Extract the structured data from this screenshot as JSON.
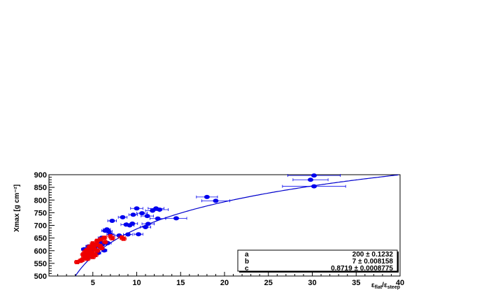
{
  "chart_data": {
    "type": "scatter",
    "title": "",
    "xlabel": "ε_flat/ε_steep",
    "ylabel": "Xmax [g cm⁻²]",
    "xlim": [
      0,
      40
    ],
    "ylim": [
      500,
      900
    ],
    "x_ticks": [
      5,
      10,
      15,
      20,
      25,
      30,
      35,
      40
    ],
    "y_ticks": [
      500,
      550,
      600,
      650,
      700,
      750,
      800,
      850,
      900
    ],
    "grid": false,
    "colors": {
      "series_blue": "#0000ee",
      "series_red": "#ee0000",
      "fit": "#0000cc"
    },
    "fit": {
      "function": "a*log(x) - ... fitted curve",
      "params": [
        {
          "name": "a",
          "value": "200 ± 0.1232"
        },
        {
          "name": "b",
          "value": "7 ± 0.008158"
        },
        {
          "name": "c",
          "value": "0.8719 ± 0.0008775"
        }
      ]
    },
    "series": [
      {
        "marker": "circle",
        "color": "#0000ee",
        "points": [
          [
            30.2,
            897,
            3.0
          ],
          [
            29.8,
            880,
            2.0
          ],
          [
            30.2,
            854,
            3.6
          ],
          [
            18.0,
            812,
            1.2
          ],
          [
            19.0,
            797,
            1.6
          ],
          [
            12.2,
            767,
            0.9
          ],
          [
            10.0,
            767,
            0.7
          ],
          [
            12.6,
            762,
            1.0
          ],
          [
            11.8,
            758,
            0.8
          ],
          [
            10.6,
            748,
            0.6
          ],
          [
            9.6,
            742,
            0.5
          ],
          [
            11.2,
            737,
            0.7
          ],
          [
            14.5,
            728,
            1.2
          ],
          [
            12.4,
            727,
            0.9
          ],
          [
            8.4,
            732,
            0.5
          ],
          [
            7.2,
            718,
            0.5
          ],
          [
            9.5,
            707,
            0.6
          ],
          [
            11.3,
            706,
            0.7
          ],
          [
            8.8,
            703,
            0.6
          ],
          [
            11.0,
            693,
            0.6
          ],
          [
            9.2,
            700,
            0.5
          ],
          [
            6.6,
            684,
            0.4
          ],
          [
            6.4,
            679,
            0.4
          ],
          [
            6.8,
            676,
            0.4
          ],
          [
            10.2,
            665,
            0.5
          ],
          [
            9.0,
            664,
            0.5
          ],
          [
            8.0,
            660,
            0.5
          ],
          [
            7.0,
            664,
            0.4
          ],
          [
            6.0,
            651,
            0.4
          ],
          [
            5.8,
            636,
            0.4
          ],
          [
            6.7,
            630,
            0.4
          ],
          [
            6.1,
            625,
            0.4
          ],
          [
            5.5,
            621,
            0.3
          ],
          [
            4.5,
            617,
            0.3
          ],
          [
            5.9,
            614,
            0.3
          ],
          [
            5.2,
            609,
            0.3
          ],
          [
            4.0,
            606,
            0.3
          ],
          [
            6.3,
            601,
            0.3
          ],
          [
            4.8,
            599,
            0.3
          ],
          [
            4.2,
            595,
            0.3
          ],
          [
            5.6,
            591,
            0.3
          ],
          [
            4.6,
            584,
            0.3
          ],
          [
            4.3,
            579,
            0.3
          ]
        ]
      },
      {
        "marker": "square",
        "color": "#ee0000",
        "points": [
          [
            7.0,
            657,
            0.4
          ],
          [
            8.3,
            652,
            0.4
          ],
          [
            7.2,
            649,
            0.3
          ],
          [
            8.5,
            647,
            0.3
          ],
          [
            6.3,
            651,
            0.3
          ],
          [
            5.9,
            645,
            0.3
          ],
          [
            5.5,
            639,
            0.3
          ],
          [
            6.4,
            634,
            0.3
          ],
          [
            5.0,
            629,
            0.3
          ],
          [
            5.4,
            624,
            0.3
          ],
          [
            5.8,
            619,
            0.3
          ],
          [
            4.6,
            615,
            0.3
          ],
          [
            5.1,
            612,
            0.3
          ],
          [
            4.7,
            608,
            0.3
          ],
          [
            5.2,
            605,
            0.3
          ],
          [
            4.3,
            602,
            0.3
          ],
          [
            4.6,
            598,
            0.3
          ],
          [
            4.1,
            595,
            0.3
          ],
          [
            5.0,
            592,
            0.3
          ],
          [
            4.3,
            589,
            0.3
          ],
          [
            4.8,
            585,
            0.3
          ],
          [
            5.3,
            583,
            0.3
          ],
          [
            4.5,
            579,
            0.3
          ],
          [
            5.0,
            575,
            0.3
          ],
          [
            4.0,
            572,
            0.3
          ],
          [
            4.4,
            568,
            0.3
          ],
          [
            3.8,
            564,
            0.3
          ],
          [
            3.6,
            560,
            0.3
          ],
          [
            3.2,
            555,
            0.3
          ],
          [
            5.5,
            600,
            0.3
          ],
          [
            6.0,
            610,
            0.3
          ],
          [
            4.9,
            620,
            0.3
          ],
          [
            3.9,
            585,
            0.3
          ],
          [
            4.2,
            580,
            0.3
          ]
        ]
      }
    ]
  }
}
